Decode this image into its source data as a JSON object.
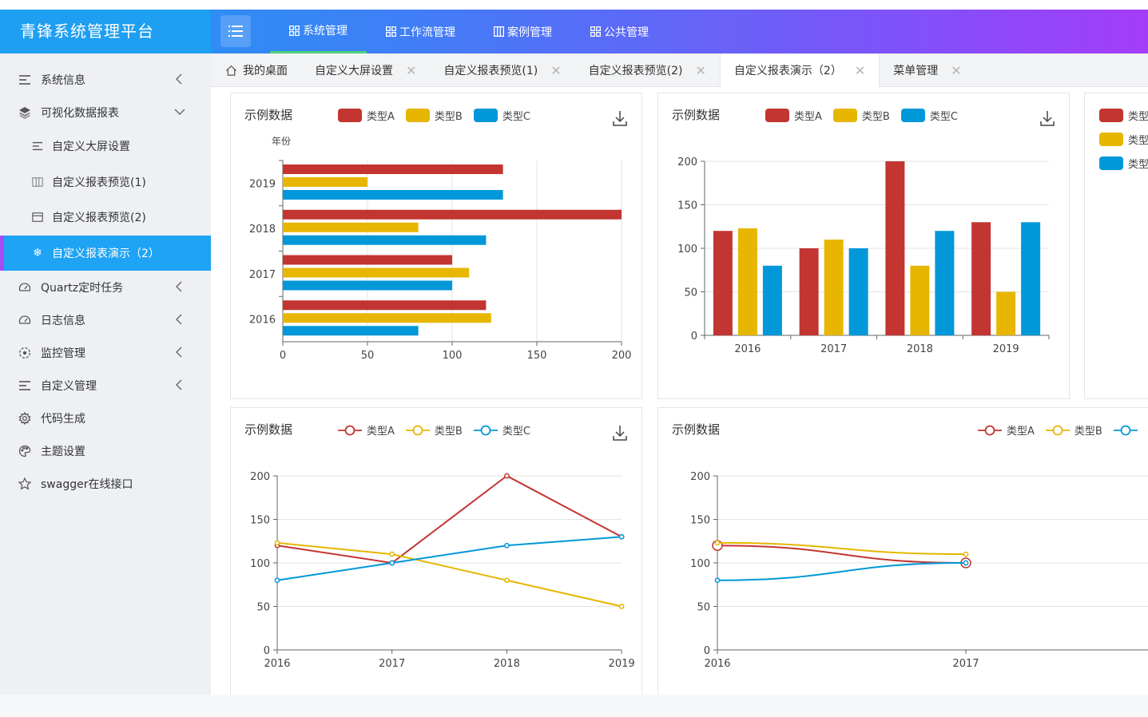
{
  "app": {
    "title": "青锋系统管理平台"
  },
  "topnav": [
    {
      "label": "系统管理",
      "active": true
    },
    {
      "label": "工作流管理",
      "active": false
    },
    {
      "label": "案例管理",
      "active": false
    },
    {
      "label": "公共管理",
      "active": false
    }
  ],
  "sidebar": {
    "items": [
      {
        "label": "系统信息",
        "icon": "list-icon"
      },
      {
        "label": "可视化数据报表",
        "icon": "layers-icon"
      },
      {
        "label": "自定义大屏设置",
        "icon": "list-icon"
      },
      {
        "label": "自定义报表预览(1)",
        "icon": "columns-icon"
      },
      {
        "label": "自定义报表预览(2)",
        "icon": "window-icon"
      },
      {
        "label": "自定义报表演示（2）",
        "icon": "snowflake-icon"
      },
      {
        "label": "Quartz定时任务",
        "icon": "gauge-icon"
      },
      {
        "label": "日志信息",
        "icon": "gauge-icon"
      },
      {
        "label": "监控管理",
        "icon": "monitor-icon"
      },
      {
        "label": "自定义管理",
        "icon": "list-icon"
      },
      {
        "label": "代码生成",
        "icon": "gear-icon"
      },
      {
        "label": "主题设置",
        "icon": "palette-icon"
      },
      {
        "label": "swagger在线接口",
        "icon": "star-icon"
      }
    ]
  },
  "tabs": [
    {
      "label": "我的桌面",
      "closable": false
    },
    {
      "label": "自定义大屏设置",
      "closable": true
    },
    {
      "label": "自定义报表预览(1)",
      "closable": true
    },
    {
      "label": "自定义报表预览(2)",
      "closable": true
    },
    {
      "label": "自定义报表演示（2）",
      "closable": true,
      "active": true
    },
    {
      "label": "菜单管理",
      "closable": true
    }
  ],
  "tab_close_glyph": "✕",
  "colors": {
    "series_a": "#c23531",
    "series_b": "#e6b600",
    "series_c": "#0098d9",
    "accent": "#1fa3f5"
  },
  "cards": [
    {
      "title": "示例数据",
      "legend": [
        "类型A",
        "类型B",
        "类型C"
      ]
    },
    {
      "title": "示例数据",
      "legend": [
        "类型A",
        "类型B",
        "类型C"
      ]
    },
    {
      "legend": [
        "类型",
        "类型",
        "类型"
      ]
    },
    {
      "title": "示例数据",
      "legend": [
        "类型A",
        "类型B",
        "类型C"
      ]
    },
    {
      "title": "示例数据",
      "legend": [
        "类型A",
        "类型B"
      ]
    }
  ],
  "chart_data": [
    {
      "type": "bar",
      "orientation": "horizontal",
      "title": "示例数据",
      "ylabel": "年份",
      "categories": [
        "2016",
        "2017",
        "2018",
        "2019"
      ],
      "series": [
        {
          "name": "类型A",
          "values": [
            120,
            100,
            200,
            130
          ]
        },
        {
          "name": "类型B",
          "values": [
            123,
            110,
            80,
            50
          ]
        },
        {
          "name": "类型C",
          "values": [
            80,
            100,
            120,
            130
          ]
        }
      ],
      "xlim": [
        0,
        200
      ],
      "ticks": [
        "0",
        "50",
        "100",
        "150",
        "200"
      ],
      "legend": "top"
    },
    {
      "type": "bar",
      "title": "示例数据",
      "categories": [
        "2016",
        "2017",
        "2018",
        "2019"
      ],
      "series": [
        {
          "name": "类型A",
          "values": [
            120,
            100,
            200,
            130
          ]
        },
        {
          "name": "类型B",
          "values": [
            123,
            110,
            80,
            50
          ]
        },
        {
          "name": "类型C",
          "values": [
            80,
            100,
            120,
            130
          ]
        }
      ],
      "ylim": [
        0,
        200
      ],
      "ticks": [
        "0",
        "50",
        "100",
        "150",
        "200"
      ],
      "legend": "top"
    },
    {
      "type": "line",
      "title": "示例数据",
      "categories": [
        "2016",
        "2017",
        "2018",
        "2019"
      ],
      "series": [
        {
          "name": "类型A",
          "values": [
            120,
            100,
            200,
            130
          ]
        },
        {
          "name": "类型B",
          "values": [
            123,
            110,
            80,
            50
          ]
        },
        {
          "name": "类型C",
          "values": [
            80,
            100,
            120,
            130
          ]
        }
      ],
      "ylim": [
        0,
        200
      ],
      "ticks": [
        "0",
        "50",
        "100",
        "150",
        "200"
      ],
      "legend": "top"
    },
    {
      "type": "line",
      "title": "示例数据",
      "categories": [
        "2016",
        "2017"
      ],
      "series": [
        {
          "name": "类型A",
          "values": [
            120,
            100
          ]
        },
        {
          "name": "类型B",
          "values": [
            123,
            110
          ]
        },
        {
          "name": "类型C",
          "values": [
            80,
            100
          ]
        }
      ],
      "ylim": [
        0,
        200
      ],
      "ticks": [
        "0",
        "50",
        "100",
        "150",
        "200"
      ],
      "legend": "top",
      "smooth": true,
      "note": "partially visible, clipped at right edge"
    }
  ]
}
